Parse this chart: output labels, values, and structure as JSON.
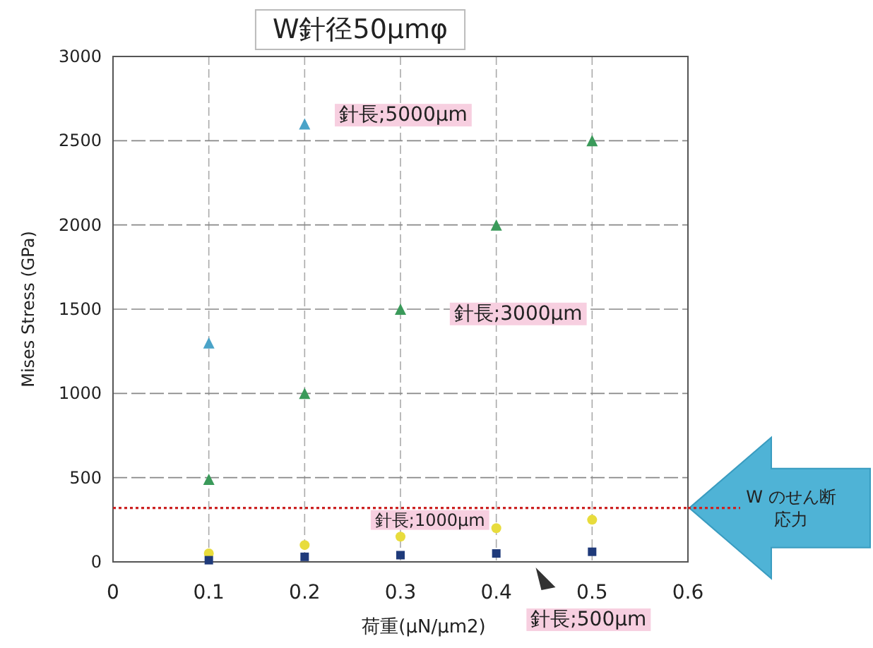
{
  "chart_data": {
    "type": "scatter",
    "title": "W針径50μmφ",
    "xlabel": "荷重(μN/μm2)",
    "ylabel": "Mises Stress (GPa)",
    "x": [
      0.1,
      0.2,
      0.3,
      0.4,
      0.5
    ],
    "series": [
      {
        "name": "針長;5000μm",
        "color": "#4aa3c8",
        "marker": "triangle",
        "values": [
          1300,
          2600,
          null,
          null,
          null
        ]
      },
      {
        "name": "針長;3000μm",
        "color": "#3a9a5a",
        "marker": "triangle",
        "values": [
          490,
          1000,
          1500,
          2000,
          2500
        ]
      },
      {
        "name": "針長;1000μm",
        "color": "#e8dc3c",
        "marker": "circle",
        "values": [
          50,
          100,
          150,
          200,
          250
        ]
      },
      {
        "name": "針長;500μm",
        "color": "#1f3a7a",
        "marker": "square",
        "values": [
          10,
          30,
          40,
          50,
          60
        ]
      }
    ],
    "xlim": [
      0,
      0.6
    ],
    "xticks": [
      0,
      0.1,
      0.2,
      0.3,
      0.4,
      0.5,
      0.6
    ],
    "ylim": [
      0,
      3000
    ],
    "yticks": [
      0,
      500,
      1000,
      1500,
      2000,
      2500,
      3000
    ],
    "grid": true,
    "ref_lines": [
      {
        "axis": "y",
        "value": 320,
        "label": "W のせん断応力",
        "color": "#cc2222",
        "line_style": "dotted"
      }
    ]
  }
}
